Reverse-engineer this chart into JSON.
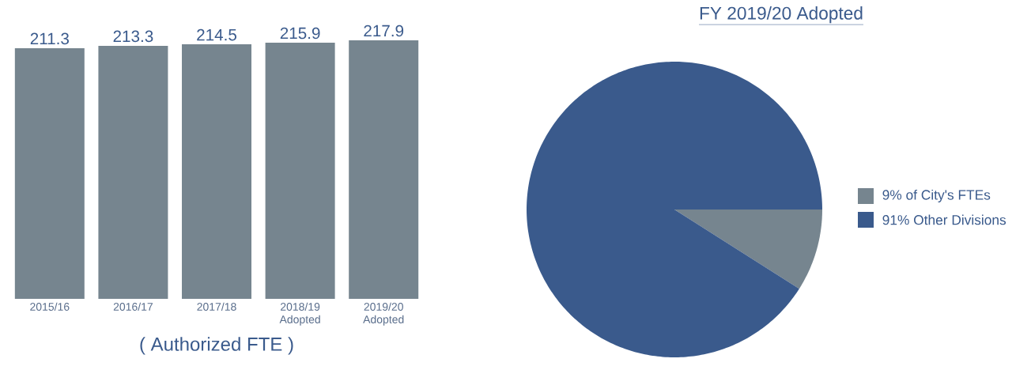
{
  "chart_data": [
    {
      "type": "bar",
      "categories": [
        "2015/16",
        "2016/17",
        "2017/18",
        "2018/19 Adopted",
        "2019/20 Adopted"
      ],
      "values": [
        211.3,
        213.3,
        214.5,
        215.9,
        217.9
      ],
      "color": "#76858f",
      "data_labels": true,
      "xlabel": "( Authorized FTE )"
    },
    {
      "type": "pie",
      "title": "FY 2019/20 Adopted",
      "categories": [
        "9% of City's FTEs",
        "91% Other Divisions"
      ],
      "values": [
        9,
        91
      ],
      "colors": [
        "#76858f",
        "#3a5a8c"
      ],
      "legend": "right"
    }
  ]
}
